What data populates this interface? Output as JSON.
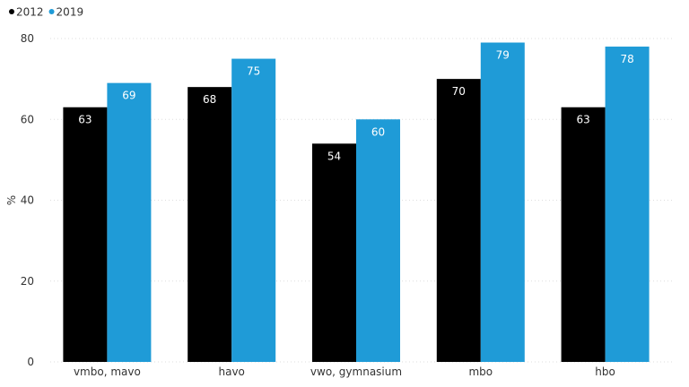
{
  "chart_data": {
    "type": "bar",
    "categories": [
      "vmbo, mavo",
      "havo",
      "vwo, gymnasium",
      "mbo",
      "hbo"
    ],
    "series": [
      {
        "name": "2012",
        "values": [
          63,
          68,
          54,
          70,
          63
        ],
        "color": "#000000",
        "labels": [
          "63",
          "68",
          "54",
          "70",
          "63"
        ]
      },
      {
        "name": "2019",
        "values": [
          69,
          75,
          60,
          79,
          78
        ],
        "color": "#1f9bd7",
        "labels": [
          "69",
          "75",
          "60",
          "79",
          "78"
        ]
      }
    ],
    "ylabel": "%",
    "ylim": [
      0,
      80
    ],
    "yticks": [
      "0",
      "20",
      "40",
      "60",
      "80"
    ],
    "grid": true,
    "legend_position": "top-left"
  }
}
